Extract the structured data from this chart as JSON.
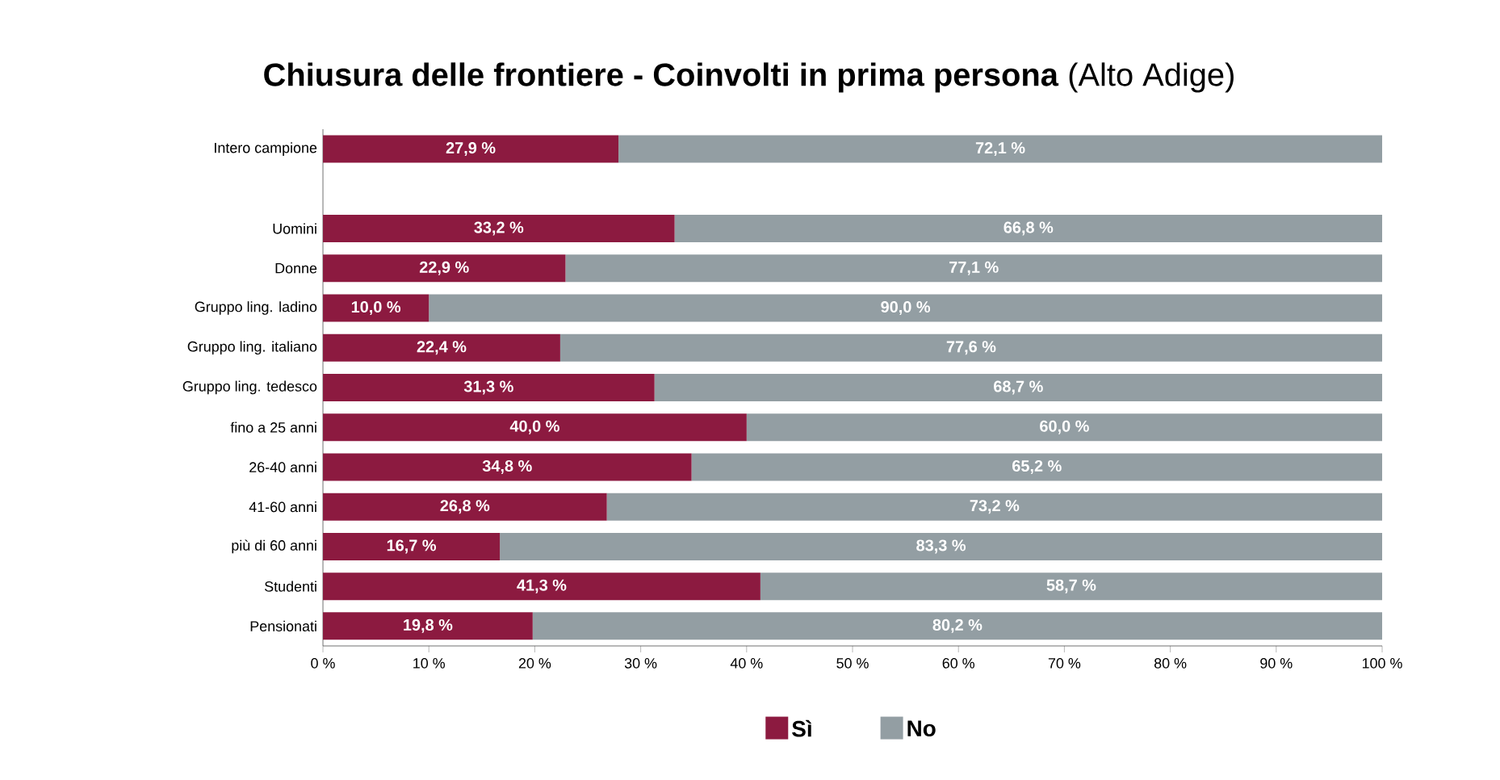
{
  "chart_data": {
    "type": "bar",
    "orientation": "horizontal",
    "stacked": true,
    "title": "**Chiusura delle frontiere - Coinvolti in prima persona** (Alto Adige)",
    "categories": [
      "Intero campione",
      null,
      "Uomini",
      "Donne",
      "Gruppo ling. ladino",
      "Gruppo ling. italiano",
      "Gruppo ling. tedesco",
      "fino a 25 anni",
      "26-40 anni",
      "41-60 anni",
      "più di 60 anni",
      "Studenti",
      "Pensionati"
    ],
    "series": [
      {
        "name": "Sì",
        "color": "#8c1a40",
        "values": [
          27.9,
          null,
          33.2,
          22.9,
          10.0,
          22.4,
          31.3,
          40.0,
          34.8,
          26.8,
          16.7,
          41.3,
          19.8
        ],
        "value_labels": [
          "27,9 %",
          null,
          "33,2 %",
          "22,9 %",
          "10,0 %",
          "22,4 %",
          "31,3 %",
          "40,0 %",
          "34,8 %",
          "26,8 %",
          "16,7 %",
          "41,3 %",
          "19,8 %"
        ]
      },
      {
        "name": "No",
        "color": "#939ea3",
        "values": [
          72.1,
          null,
          66.8,
          77.1,
          90.0,
          77.6,
          68.7,
          60.0,
          65.2,
          73.2,
          83.3,
          58.7,
          80.2
        ],
        "value_labels": [
          "72,1 %",
          null,
          "66,8 %",
          "77,1 %",
          "90,0 %",
          "77,6 %",
          "68,7 %",
          "60,0 %",
          "65,2 %",
          "73,2 %",
          "83,3 %",
          "58,7 %",
          "80,2 %"
        ]
      }
    ],
    "xlim": [
      0,
      100
    ],
    "xticks": [
      {
        "value": 0,
        "label": "0 %"
      },
      {
        "value": 10,
        "label": "10 %"
      },
      {
        "value": 20,
        "label": "20 %"
      },
      {
        "value": 30,
        "label": "30 %"
      },
      {
        "value": 40,
        "label": "40 %"
      },
      {
        "value": 50,
        "label": "50 %"
      },
      {
        "value": 60,
        "label": "60 %"
      },
      {
        "value": 70,
        "label": "70 %"
      },
      {
        "value": 80,
        "label": "80 %"
      },
      {
        "value": 90,
        "label": "90 %"
      },
      {
        "value": 100,
        "label": "100 %"
      }
    ],
    "legend": "bottom"
  }
}
